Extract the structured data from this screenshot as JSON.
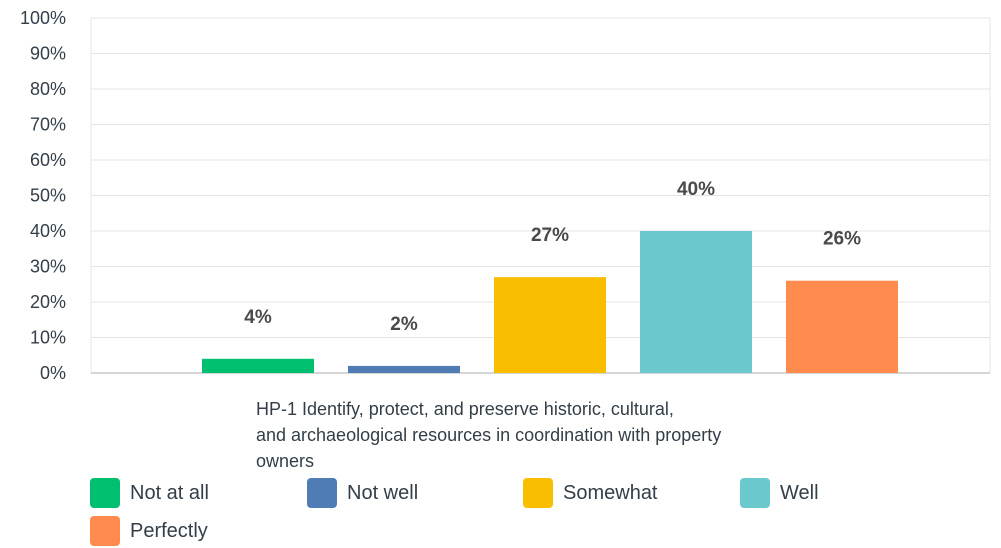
{
  "chart_data": {
    "type": "bar",
    "categories": [
      "HP-1 Identify, protect, and preserve historic, cultural, and archaeological resources in coordination with property owners"
    ],
    "category_label_lines": [
      "HP-1 Identify, protect, and preserve historic, cultural,",
      "and archaeological resources in coordination with property",
      "owners"
    ],
    "series": [
      {
        "name": "Not at all",
        "values": [
          4
        ],
        "label": "4%",
        "color": "#00bf6f"
      },
      {
        "name": "Not well",
        "values": [
          2
        ],
        "label": "2%",
        "color": "#507cb6"
      },
      {
        "name": "Somewhat",
        "values": [
          27
        ],
        "label": "27%",
        "color": "#f9be00"
      },
      {
        "name": "Well",
        "values": [
          40
        ],
        "label": "40%",
        "color": "#6bc8cd"
      },
      {
        "name": "Perfectly",
        "values": [
          26
        ],
        "label": "26%",
        "color": "#ff8b4f"
      }
    ],
    "y_ticks": [
      "0%",
      "10%",
      "20%",
      "30%",
      "40%",
      "50%",
      "60%",
      "70%",
      "80%",
      "90%",
      "100%"
    ],
    "ylim": [
      0,
      100
    ],
    "grid": true,
    "legend_position": "bottom",
    "title": "",
    "xlabel": "",
    "ylabel": ""
  }
}
